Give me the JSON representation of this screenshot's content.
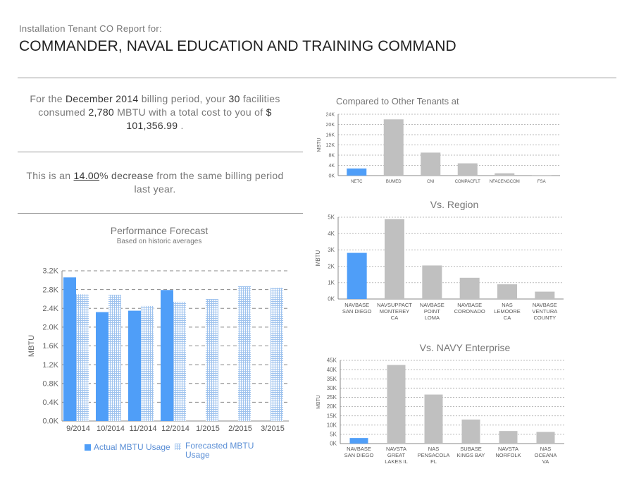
{
  "header": {
    "subtitle": "Installation Tenant CO Report for:",
    "title": "COMMANDER, NAVAL EDUCATION AND TRAINING COMMAND"
  },
  "summary": {
    "p1_a": "For the ",
    "period": "December 2014",
    "p1_b": " billing period, your ",
    "facilities": "30",
    "p1_c": " facilities consumed ",
    "mbtu": "2,780",
    "p1_d": " MBTU with a total cost to you of ",
    "cost": "$ 101,356.99",
    "p1_e": " .",
    "p2_a": "This is an ",
    "pct": "14.00",
    "p2_b": "% decrease",
    "p2_c": " from the same billing period last year."
  },
  "colors": {
    "actual": "#4f9ef8",
    "forecast": "#9fc3ee",
    "other": "#c0c0c0"
  },
  "chart_data": [
    {
      "id": "forecast",
      "type": "bar",
      "title": "Performance Forecast",
      "subtitle": "Based on historic averages",
      "ylabel": "MBTU",
      "categories": [
        "9/2014",
        "10/2014",
        "11/2014",
        "12/2014",
        "1/2015",
        "2/2015",
        "3/2015"
      ],
      "yticks": [
        "0.0K",
        "0.4K",
        "0.8K",
        "1.2K",
        "1.6K",
        "2.0K",
        "2.4K",
        "2.8K",
        "3.2K"
      ],
      "ylim": [
        0,
        3200
      ],
      "series": [
        {
          "name": "Actual MBTU Usage",
          "values": [
            3060,
            2320,
            2350,
            2790,
            null,
            null,
            null
          ]
        },
        {
          "name": "Forecasted MBTU Usage",
          "values": [
            2700,
            2690,
            2450,
            2540,
            2600,
            2870,
            2840
          ]
        }
      ]
    },
    {
      "id": "tenants",
      "type": "bar",
      "title": "Compared to Other Tenants at",
      "ylabel": "MBTU",
      "categories": [
        "NETC",
        "BUMED",
        "CNI",
        "COMPACFLT",
        "NFACENGCOM",
        "FSA"
      ],
      "yticks": [
        "0K",
        "4K",
        "8K",
        "12K",
        "16K",
        "20K",
        "24K"
      ],
      "ylim": [
        0,
        24000
      ],
      "values": [
        2780,
        22000,
        9000,
        4800,
        900,
        200
      ],
      "highlight": 0
    },
    {
      "id": "region",
      "type": "bar",
      "title": "Vs. Region",
      "ylabel": "MBTU",
      "categories": [
        [
          "NAVBASE",
          "SAN DIEGO"
        ],
        [
          "NAVSUPPACT",
          "MONTEREY",
          "CA"
        ],
        [
          "NAVBASE",
          "POINT",
          "LOMA"
        ],
        [
          "NAVBASE",
          "CORONADO"
        ],
        [
          "NAS",
          "LEMOORE",
          "CA"
        ],
        [
          "NAVBASE",
          "VENTURA",
          "COUNTY"
        ]
      ],
      "yticks": [
        "0K",
        "1K",
        "2K",
        "3K",
        "4K",
        "5K"
      ],
      "ylim": [
        0,
        5000
      ],
      "values": [
        2820,
        4880,
        2050,
        1300,
        900,
        450
      ],
      "highlight": 0
    },
    {
      "id": "navy",
      "type": "bar",
      "title": "Vs. NAVY Enterprise",
      "ylabel": "MBTU",
      "categories": [
        [
          "NAVBASE",
          "SAN DIEGO"
        ],
        [
          "NAVSTA",
          "GREAT",
          "LAKES IL"
        ],
        [
          "NAS",
          "PENSACOLA",
          "FL"
        ],
        [
          "SUBASE",
          "KINGS BAY"
        ],
        [
          "NAVSTA",
          "NORFOLK"
        ],
        [
          "NAS",
          "OCEANA",
          "VA"
        ]
      ],
      "yticks": [
        "0K",
        "5K",
        "10K",
        "15K",
        "20K",
        "25K",
        "30K",
        "35K",
        "40K",
        "45K"
      ],
      "ylim": [
        0,
        45000
      ],
      "values": [
        3000,
        42500,
        26500,
        13000,
        6800,
        6300
      ],
      "highlight": 0
    }
  ]
}
